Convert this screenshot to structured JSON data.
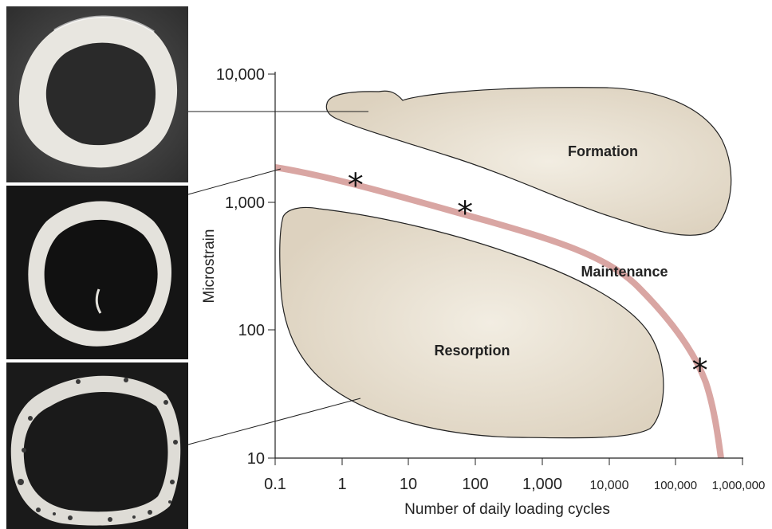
{
  "figure": {
    "y_axis": {
      "title": "Microstrain",
      "ticks": [
        "10,000",
        "1,000",
        "100",
        "10"
      ],
      "tick_values": [
        10000,
        1000,
        100,
        10
      ],
      "scale": "log"
    },
    "x_axis": {
      "title": "Number of daily loading cycles",
      "ticks": [
        "0.1",
        "1",
        "10",
        "100",
        "1,000",
        "10,000",
        "100,000",
        "1,000,000"
      ],
      "tick_values": [
        0.1,
        1,
        10,
        100,
        1000,
        10000,
        100000,
        1000000
      ],
      "scale": "log"
    },
    "regions": {
      "formation": "Formation",
      "maintenance": "Maintenance",
      "resorption": "Resorption"
    },
    "threshold_curve_color": "#d9a6a3",
    "region_fill_color": "#ddd2bf",
    "markers": [
      {
        "symbol": "*",
        "cycles": 1.6,
        "microstrain": 1400
      },
      {
        "symbol": "*",
        "cycles": 70,
        "microstrain": 850
      },
      {
        "symbol": "*",
        "cycles": 230000,
        "microstrain": 50
      }
    ],
    "photos": [
      {
        "name": "bone-cross-section-thick",
        "links_to": "formation"
      },
      {
        "name": "bone-cross-section-normal",
        "links_to": "maintenance"
      },
      {
        "name": "bone-cross-section-porous",
        "links_to": "resorption"
      }
    ]
  }
}
